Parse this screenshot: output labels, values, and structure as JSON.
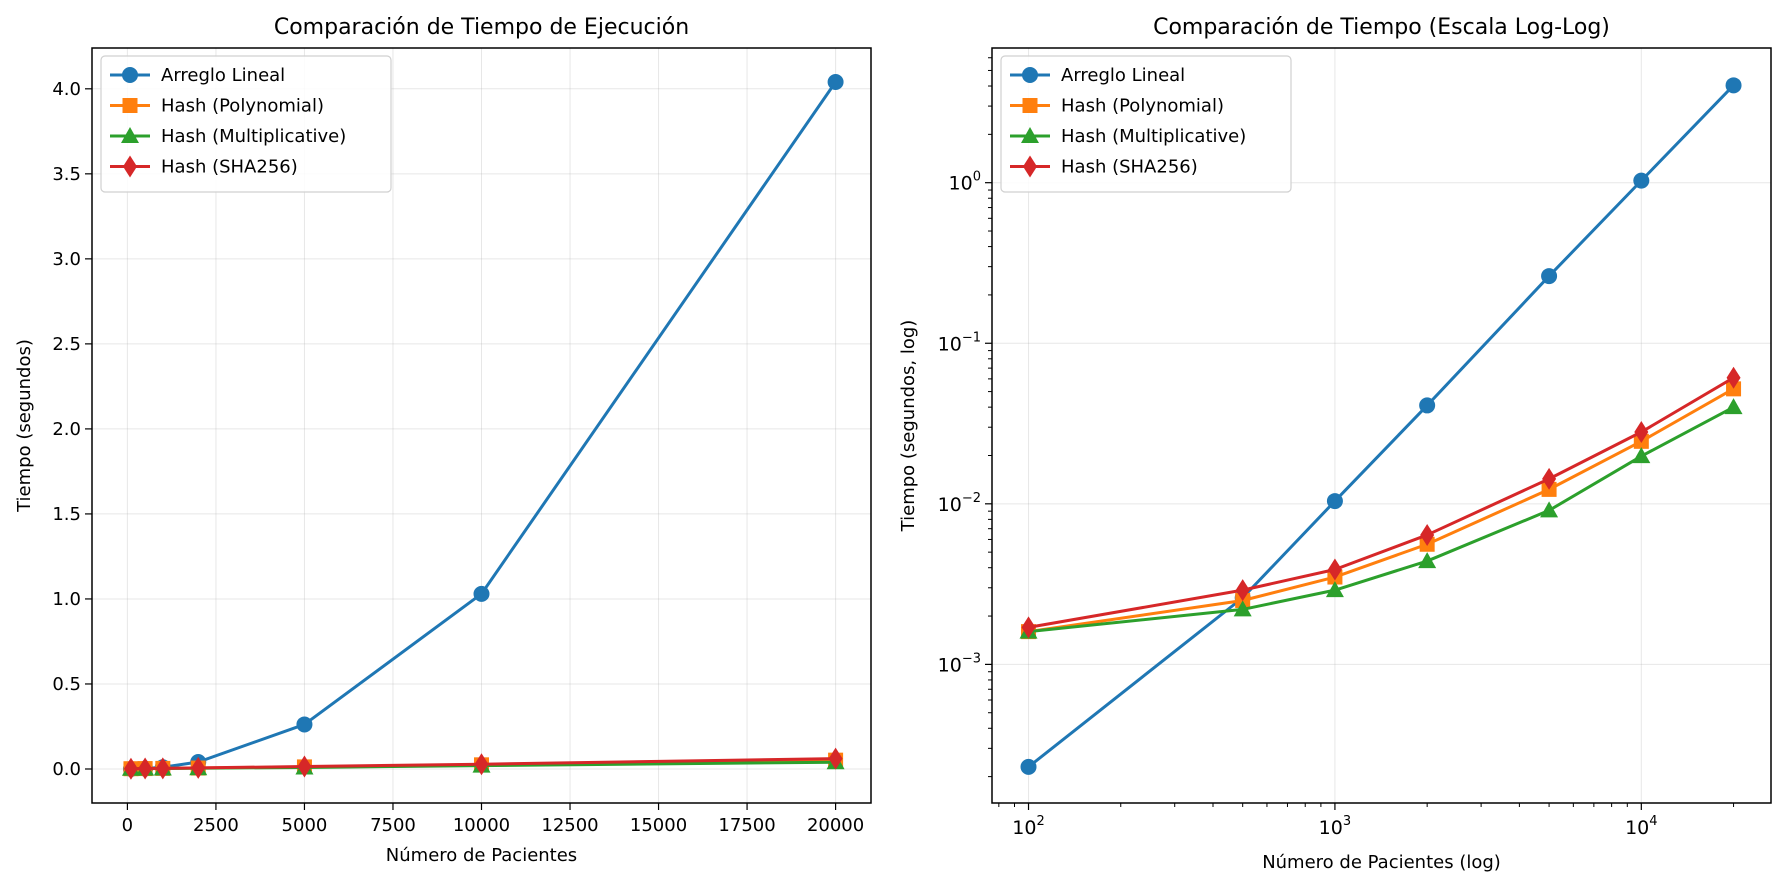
{
  "chart_data": [
    {
      "type": "line",
      "title": "Comparación de Tiempo de Ejecución",
      "xlabel": "Número de Pacientes",
      "ylabel": "Tiempo (segundos)",
      "xscale": "linear",
      "yscale": "linear",
      "xlim": [
        -1000,
        21000
      ],
      "ylim": [
        -0.2,
        4.24
      ],
      "xticks": [
        0,
        2500,
        5000,
        7500,
        10000,
        12500,
        15000,
        17500,
        20000
      ],
      "xtick_labels": [
        "0",
        "2500",
        "5000",
        "7500",
        "10000",
        "12500",
        "15000",
        "17500",
        "20000"
      ],
      "yticks": [
        0.0,
        0.5,
        1.0,
        1.5,
        2.0,
        2.5,
        3.0,
        3.5,
        4.0
      ],
      "ytick_labels": [
        "0.0",
        "0.5",
        "1.0",
        "1.5",
        "2.0",
        "2.5",
        "3.0",
        "3.5",
        "4.0"
      ],
      "grid": true,
      "legend_position": "top-left",
      "x": [
        100,
        500,
        1000,
        2000,
        5000,
        10000,
        20000
      ],
      "series": [
        {
          "name": "Arreglo Lineal",
          "color": "#1f77b4",
          "marker": "circle",
          "values": [
            0.00023,
            0.0026,
            0.0104,
            0.041,
            0.262,
            1.03,
            4.04
          ]
        },
        {
          "name": "Hash (Polynomial)",
          "color": "#ff7f0e",
          "marker": "square",
          "values": [
            0.0016,
            0.0025,
            0.0035,
            0.0056,
            0.0123,
            0.0245,
            0.052
          ]
        },
        {
          "name": "Hash (Multiplicative)",
          "color": "#2ca02c",
          "marker": "triangle",
          "values": [
            0.0016,
            0.0022,
            0.0029,
            0.0044,
            0.0091,
            0.0198,
            0.04
          ]
        },
        {
          "name": "Hash (SHA256)",
          "color": "#d62728",
          "marker": "diamond",
          "values": [
            0.0017,
            0.0029,
            0.0039,
            0.0064,
            0.0143,
            0.028,
            0.061
          ]
        }
      ]
    },
    {
      "type": "line",
      "title": "Comparación de Tiempo (Escala Log-Log)",
      "xlabel": "Número de Pacientes (log)",
      "ylabel": "Tiempo (segundos, log)",
      "xscale": "log",
      "yscale": "log",
      "xlim": [
        76,
        26500
      ],
      "ylim": [
        0.000137,
        6.9
      ],
      "xticks": [
        100,
        1000,
        10000
      ],
      "xtick_labels": [
        [
          "10",
          "2"
        ],
        [
          "10",
          "3"
        ],
        [
          "10",
          "4"
        ]
      ],
      "yticks": [
        0.001,
        0.01,
        0.1,
        1
      ],
      "ytick_labels": [
        [
          "10",
          "−3"
        ],
        [
          "10",
          "−2"
        ],
        [
          "10",
          "−1"
        ],
        [
          "10",
          "0"
        ]
      ],
      "grid": true,
      "legend_position": "top-left",
      "x": [
        100,
        500,
        1000,
        2000,
        5000,
        10000,
        20000
      ],
      "series": [
        {
          "name": "Arreglo Lineal",
          "color": "#1f77b4",
          "marker": "circle",
          "values": [
            0.00023,
            0.0026,
            0.0104,
            0.041,
            0.262,
            1.03,
            4.04
          ]
        },
        {
          "name": "Hash (Polynomial)",
          "color": "#ff7f0e",
          "marker": "square",
          "values": [
            0.0016,
            0.0025,
            0.0035,
            0.0056,
            0.0123,
            0.0245,
            0.052
          ]
        },
        {
          "name": "Hash (Multiplicative)",
          "color": "#2ca02c",
          "marker": "triangle",
          "values": [
            0.0016,
            0.0022,
            0.0029,
            0.0044,
            0.0091,
            0.0198,
            0.04
          ]
        },
        {
          "name": "Hash (SHA256)",
          "color": "#d62728",
          "marker": "diamond",
          "values": [
            0.0017,
            0.0029,
            0.0039,
            0.0064,
            0.0143,
            0.028,
            0.061
          ]
        }
      ]
    }
  ]
}
